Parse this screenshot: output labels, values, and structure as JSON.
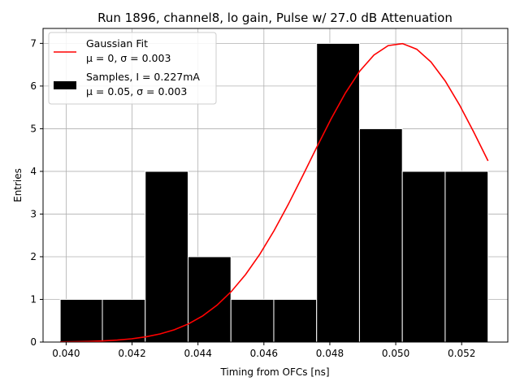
{
  "chart_data": {
    "type": "bar",
    "title": "Run 1896, channel8, lo gain, Pulse w/ 27.0 dB Attenuation",
    "xlabel": "Timing from OFCs [ns]",
    "ylabel": "Entries",
    "xlim": [
      0.0393,
      0.0534
    ],
    "ylim": [
      0,
      7.35
    ],
    "xticks": [
      0.04,
      0.042,
      0.044,
      0.046,
      0.048,
      0.05,
      0.052
    ],
    "xtick_labels": [
      "0.040",
      "0.042",
      "0.044",
      "0.046",
      "0.048",
      "0.050",
      "0.052"
    ],
    "yticks": [
      0,
      1,
      2,
      3,
      4,
      5,
      6,
      7
    ],
    "ytick_labels": [
      "0",
      "1",
      "2",
      "3",
      "4",
      "5",
      "6",
      "7"
    ],
    "grid": true,
    "legend_position": "top-left",
    "histogram": {
      "name": "Samples, I = 0.227mA",
      "stats": "μ = 0.05, σ = 0.003",
      "color": "#000000",
      "bin_edges": [
        0.03982,
        0.0411,
        0.0424,
        0.0437,
        0.045,
        0.0463,
        0.0476,
        0.0489,
        0.0502,
        0.0515,
        0.0528
      ],
      "values": [
        1,
        1,
        4,
        2,
        1,
        1,
        7,
        5,
        4,
        4
      ]
    },
    "fit": {
      "name": "Gaussian Fit",
      "stats": "μ = 0, σ = 0.003",
      "color": "#ff0000",
      "amplitude": 7.0,
      "mean": 0.0501,
      "sigma": 0.0027,
      "x_range": [
        0.03982,
        0.0528
      ]
    }
  }
}
